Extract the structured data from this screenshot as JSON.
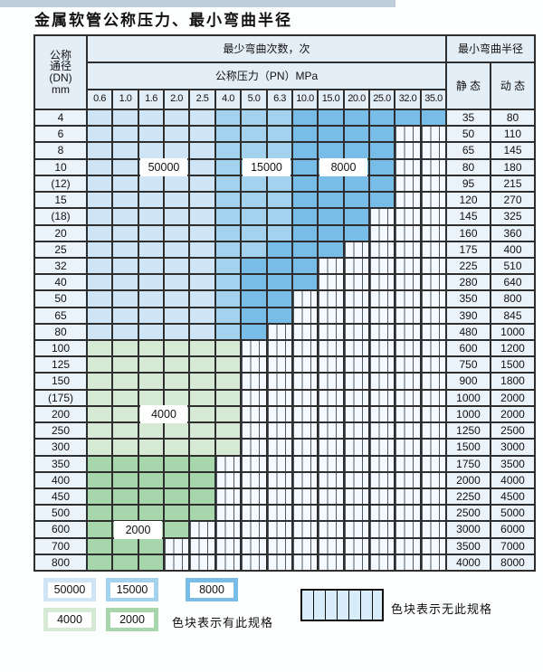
{
  "title": "金属软管公称压力、最小弯曲半径",
  "colors": {
    "P": "#cfe5f6",
    "M": "#a3d2ee",
    "D": "#77bde7",
    "G": "#d6e9d4",
    "E": "#a7d6ac",
    "N": "#f3f9fe"
  },
  "chart_data": {
    "type": "table",
    "title": "金属软管公称压力、最小弯曲半径",
    "header": {
      "dn_lines": [
        "公称",
        "通径",
        "(DN)",
        "mm"
      ],
      "bend_times": "最少弯曲次数，次",
      "pressure": "公称压力（PN）MPa",
      "pressure_cols": [
        "0.6",
        "1.0",
        "1.6",
        "2.0",
        "2.5",
        "4.0",
        "5.0",
        "6.3",
        "10.0",
        "15.0",
        "20.0",
        "25.0",
        "32.0",
        "35.0"
      ],
      "radius": "最小弯曲半径",
      "static_label": "静 态",
      "dynamic_label": "动 态"
    },
    "band_legend": {
      "P": "50000次区域",
      "M": "15000次区域",
      "D": "8000次区域",
      "G": "4000次区域",
      "E": "2000次区域",
      "N": "无此规格"
    },
    "rows": [
      {
        "dn": "4",
        "bands": "PPPPPMMMDDDDDD",
        "static": "35",
        "dynamic": "80"
      },
      {
        "dn": "6",
        "bands": "PPPPPMMMDDDDNN",
        "static": "50",
        "dynamic": "110"
      },
      {
        "dn": "8",
        "bands": "PPPPPMMMDDDDNN",
        "static": "65",
        "dynamic": "145"
      },
      {
        "dn": "10",
        "bands": "PPPPPMMMDDDDNN",
        "static": "80",
        "dynamic": "180"
      },
      {
        "dn": "(12)",
        "bands": "PPPPPMMMDDDDNN",
        "static": "95",
        "dynamic": "215"
      },
      {
        "dn": "15",
        "bands": "PPPPPMMMDDDDNN",
        "static": "120",
        "dynamic": "270"
      },
      {
        "dn": "(18)",
        "bands": "PPPPPMMMDDDNNN",
        "static": "145",
        "dynamic": "325"
      },
      {
        "dn": "20",
        "bands": "PPPPPMMMDDDNNN",
        "static": "160",
        "dynamic": "360"
      },
      {
        "dn": "25",
        "bands": "PPPPPMMDDDNNNN",
        "static": "175",
        "dynamic": "400"
      },
      {
        "dn": "32",
        "bands": "PPPPPMDDDNNNNN",
        "static": "225",
        "dynamic": "510"
      },
      {
        "dn": "40",
        "bands": "PPPPPMDDDNNNNN",
        "static": "280",
        "dynamic": "640"
      },
      {
        "dn": "50",
        "bands": "PPPPPMDDNNNNNN",
        "static": "350",
        "dynamic": "800"
      },
      {
        "dn": "65",
        "bands": "PPPPPMDDNNNNNN",
        "static": "390",
        "dynamic": "845"
      },
      {
        "dn": "80",
        "bands": "PPPPPMDNNNNNNN",
        "static": "480",
        "dynamic": "1000"
      },
      {
        "dn": "100",
        "bands": "GGGGGGNNNNNNNN",
        "static": "600",
        "dynamic": "1200"
      },
      {
        "dn": "125",
        "bands": "GGGGGGNNNNNNNN",
        "static": "750",
        "dynamic": "1500"
      },
      {
        "dn": "150",
        "bands": "GGGGGGNNNNNNNN",
        "static": "900",
        "dynamic": "1800"
      },
      {
        "dn": "(175)",
        "bands": "GGGGGGNNNNNNNN",
        "static": "1000",
        "dynamic": "2000"
      },
      {
        "dn": "200",
        "bands": "GGGGGGNNNNNNNN",
        "static": "1000",
        "dynamic": "2000"
      },
      {
        "dn": "250",
        "bands": "GGGGGGNNNNNNNN",
        "static": "1250",
        "dynamic": "2500"
      },
      {
        "dn": "300",
        "bands": "GGGGGGNNNNNNNN",
        "static": "1500",
        "dynamic": "3000"
      },
      {
        "dn": "350",
        "bands": "EEEEENNNNNNNNN",
        "static": "1750",
        "dynamic": "3500"
      },
      {
        "dn": "400",
        "bands": "EEEEENNNNNNNNN",
        "static": "2000",
        "dynamic": "4000"
      },
      {
        "dn": "450",
        "bands": "EEEEENNNNNNNNN",
        "static": "2250",
        "dynamic": "4500"
      },
      {
        "dn": "500",
        "bands": "EEEEENNNNNNNNN",
        "static": "2500",
        "dynamic": "5000"
      },
      {
        "dn": "600",
        "bands": "EEEENNNNNNNNNN",
        "static": "3000",
        "dynamic": "6000"
      },
      {
        "dn": "700",
        "bands": "EEENNNNNNNNNNN",
        "static": "3500",
        "dynamic": "7000"
      },
      {
        "dn": "800",
        "bands": "EEENNNNNNNNNNN",
        "static": "4000",
        "dynamic": "8000"
      }
    ],
    "overlays": [
      {
        "text": "50000",
        "row": 3,
        "col_start": 2,
        "col_end": 3
      },
      {
        "text": "15000",
        "row": 3,
        "col_start": 6,
        "col_end": 7
      },
      {
        "text": "8000",
        "row": 3,
        "col_start": 9,
        "col_end": 10
      },
      {
        "text": "4000",
        "row": 18,
        "col_start": 2,
        "col_end": 3
      },
      {
        "text": "2000",
        "row": 25,
        "col_start": 1,
        "col_end": 2
      }
    ]
  },
  "legend": {
    "items": [
      {
        "label": "50000",
        "color_key": "P"
      },
      {
        "label": "15000",
        "color_key": "M"
      },
      {
        "label": "8000",
        "color_key": "D"
      },
      {
        "label": "4000",
        "color_key": "G"
      },
      {
        "label": "2000",
        "color_key": "E"
      }
    ],
    "has_spec_note": "色块表示有此规格",
    "no_spec_note": "色块表示无此规格"
  }
}
